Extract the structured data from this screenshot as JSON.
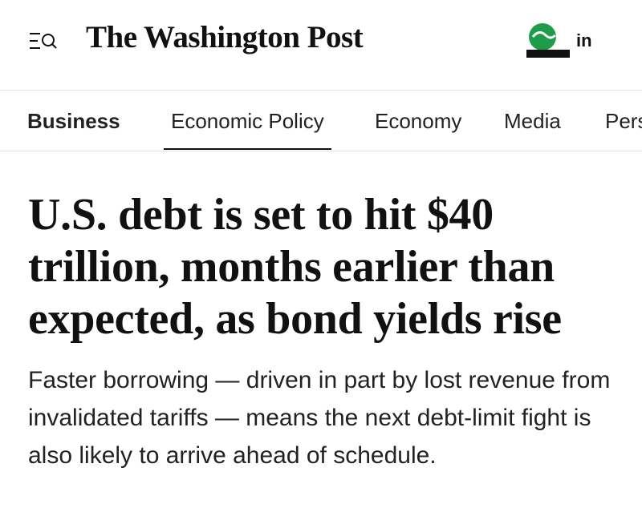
{
  "header": {
    "logo": "The Washington Post",
    "sign_in": "in"
  },
  "nav": {
    "items": [
      "Business",
      "Economic Policy",
      "Economy",
      "Media",
      "Pers"
    ],
    "active": 1
  },
  "article": {
    "headline": "U.S. debt is set to hit $40 trillion, months earlier than expected, as bond yields rise",
    "subheadline": "Faster borrowing — driven in part by lost revenue from invalidated tariffs — means the next debt-limit fight is also likely to arrive ahead of schedule."
  }
}
